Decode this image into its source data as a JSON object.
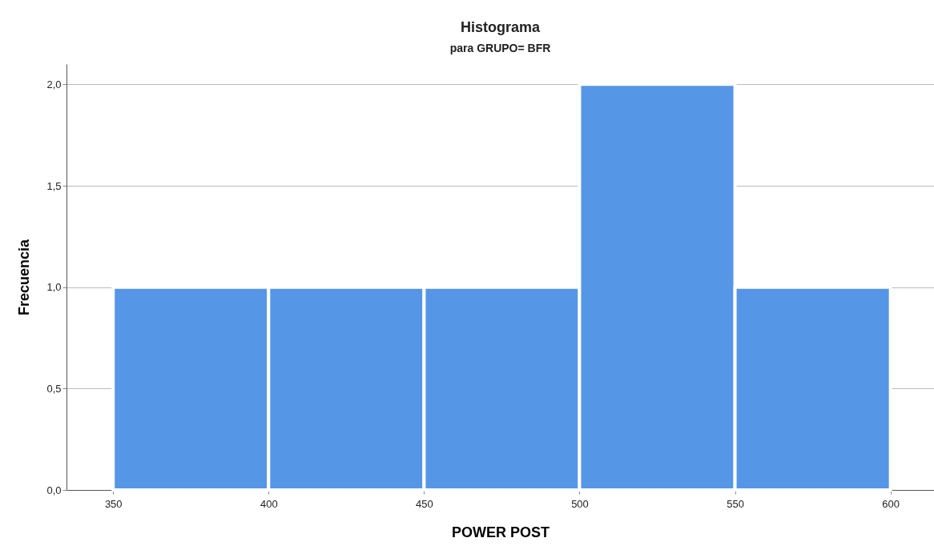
{
  "chart_data": {
    "type": "histogram",
    "title": "Histograma",
    "subtitle": "para GRUPO= BFR",
    "xlabel": "POWER POST",
    "ylabel": "Frecuencia",
    "bins": [
      350,
      400,
      450,
      500,
      550,
      600
    ],
    "values": [
      1,
      1,
      1,
      2,
      1
    ],
    "color": "#5596e6",
    "xlim": [
      335,
      614
    ],
    "xticks": [
      350,
      400,
      450,
      500,
      550,
      600
    ],
    "ylim": [
      0,
      2.1
    ],
    "yticks": [
      {
        "value": 0,
        "label": "0,0"
      },
      {
        "value": 0.5,
        "label": "0,5"
      },
      {
        "value": 1,
        "label": "1,0"
      },
      {
        "value": 1.5,
        "label": "1,5"
      },
      {
        "value": 2,
        "label": "2,0"
      }
    ],
    "grid": "y"
  }
}
